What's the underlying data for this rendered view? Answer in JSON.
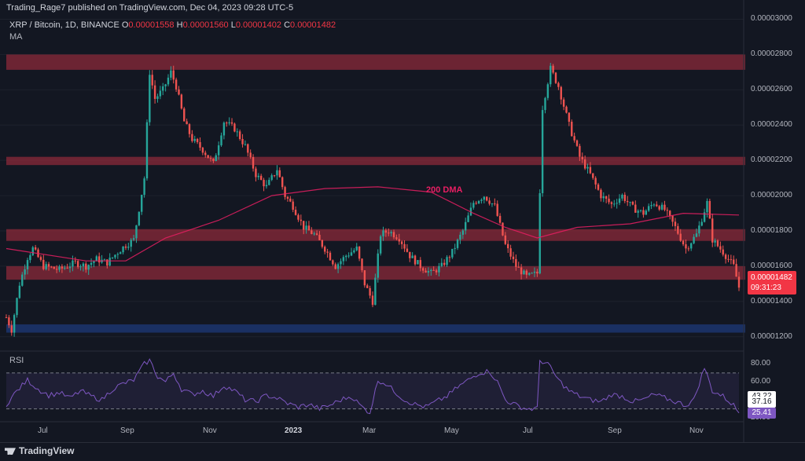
{
  "header": {
    "published": "Trading_Rage7 published on TradingView.com, Dec 04, 2023 09:28 UTC-5"
  },
  "symbol": {
    "name": "XRP / Bitcoin, 1D, BINANCE",
    "o_label": "O",
    "o_value": "0.00001558",
    "h_label": "H",
    "h_value": "0.00001560",
    "l_label": "L",
    "l_value": "0.00001402",
    "c_label": "C",
    "c_value": "0.00001482"
  },
  "indicators": {
    "ma": "MA",
    "rsi": "RSI",
    "dma_annotation": "200 DMA"
  },
  "footer": {
    "brand": "TradingView"
  },
  "price_tag": {
    "price": "0.00001482",
    "countdown": "09:31:23"
  },
  "colors": {
    "background": "#131722",
    "bull": "#26a69a",
    "bear": "#ef5350",
    "ma_line": "#e91e63",
    "rsi_line": "#7e57c2",
    "resistance_zone": "#8b2a3a",
    "support_zone": "#1e3a7a"
  },
  "chart_data": {
    "type": "candlestick",
    "title": "XRP / Bitcoin, 1D, BINANCE",
    "y_axis": {
      "min": 1.15e-05,
      "max": 3.02e-05,
      "ticks": [
        "0.00003000",
        "0.00002800",
        "0.00002600",
        "0.00002400",
        "0.00002200",
        "0.00002000",
        "0.00001800",
        "0.00001600",
        "0.00001400",
        "0.00001200"
      ]
    },
    "x_axis": {
      "ticks": [
        {
          "label": "Jul",
          "bold": false
        },
        {
          "label": "Sep",
          "bold": false
        },
        {
          "label": "Nov",
          "bold": false
        },
        {
          "label": "2023",
          "bold": true
        },
        {
          "label": "Mar",
          "bold": false
        },
        {
          "label": "May",
          "bold": false
        },
        {
          "label": "Jul",
          "bold": false
        },
        {
          "label": "Sep",
          "bold": false
        },
        {
          "label": "Nov",
          "bold": false
        }
      ]
    },
    "zones": [
      {
        "name": "resistance-2800",
        "low": 2.74e-05,
        "high": 2.8e-05,
        "kind": "resistance"
      },
      {
        "name": "resistance-2200",
        "low": 2.2e-05,
        "high": 2.22e-05,
        "kind": "resistance"
      },
      {
        "name": "resistance-1800",
        "low": 1.77e-05,
        "high": 1.81e-05,
        "kind": "resistance"
      },
      {
        "name": "resistance-1580",
        "low": 1.55e-05,
        "high": 1.6e-05,
        "kind": "resistance"
      },
      {
        "name": "support-1270",
        "low": 1.25e-05,
        "high": 1.27e-05,
        "kind": "support"
      }
    ],
    "price_path": [
      [
        0,
        1.31e-05
      ],
      [
        2,
        1.24e-05
      ],
      [
        5,
        1.5e-05
      ],
      [
        8,
        1.65e-05
      ],
      [
        10,
        1.7e-05
      ],
      [
        14,
        1.6e-05
      ],
      [
        20,
        1.58e-05
      ],
      [
        26,
        1.62e-05
      ],
      [
        30,
        1.6e-05
      ],
      [
        34,
        1.64e-05
      ],
      [
        38,
        1.62e-05
      ],
      [
        42,
        1.68e-05
      ],
      [
        45,
        1.72e-05
      ],
      [
        48,
        1.75e-05
      ],
      [
        52,
        2.1e-05
      ],
      [
        54,
        2.7e-05
      ],
      [
        56,
        2.55e-05
      ],
      [
        59,
        2.6e-05
      ],
      [
        62,
        2.7e-05
      ],
      [
        64,
        2.62e-05
      ],
      [
        67,
        2.42e-05
      ],
      [
        70,
        2.32e-05
      ],
      [
        74,
        2.26e-05
      ],
      [
        78,
        2.18e-05
      ],
      [
        82,
        2.42e-05
      ],
      [
        86,
        2.38e-05
      ],
      [
        90,
        2.28e-05
      ],
      [
        94,
        2.12e-05
      ],
      [
        98,
        2.05e-05
      ],
      [
        102,
        2.15e-05
      ],
      [
        105,
        2e-05
      ],
      [
        108,
        1.94e-05
      ],
      [
        112,
        1.82e-05
      ],
      [
        116,
        1.78e-05
      ],
      [
        120,
        1.7e-05
      ],
      [
        124,
        1.6e-05
      ],
      [
        128,
        1.66e-05
      ],
      [
        132,
        1.7e-05
      ],
      [
        135,
        1.5e-05
      ],
      [
        138,
        1.4e-05
      ],
      [
        141,
        1.78e-05
      ],
      [
        144,
        1.8e-05
      ],
      [
        148,
        1.76e-05
      ],
      [
        152,
        1.66e-05
      ],
      [
        156,
        1.6e-05
      ],
      [
        160,
        1.56e-05
      ],
      [
        164,
        1.6e-05
      ],
      [
        168,
        1.68e-05
      ],
      [
        172,
        1.8e-05
      ],
      [
        176,
        1.96e-05
      ],
      [
        180,
        2e-05
      ],
      [
        184,
        1.94e-05
      ],
      [
        188,
        1.72e-05
      ],
      [
        192,
        1.6e-05
      ],
      [
        196,
        1.54e-05
      ],
      [
        200,
        1.56e-05
      ],
      [
        202,
        2.5e-05
      ],
      [
        205,
        2.72e-05
      ],
      [
        208,
        2.62e-05
      ],
      [
        212,
        2.4e-05
      ],
      [
        216,
        2.22e-05
      ],
      [
        220,
        2.12e-05
      ],
      [
        224,
        2e-05
      ],
      [
        228,
        1.95e-05
      ],
      [
        232,
        2e-05
      ],
      [
        236,
        1.93e-05
      ],
      [
        240,
        1.9e-05
      ],
      [
        244,
        1.96e-05
      ],
      [
        248,
        1.92e-05
      ],
      [
        252,
        1.82e-05
      ],
      [
        256,
        1.7e-05
      ],
      [
        260,
        1.78e-05
      ],
      [
        264,
        1.96e-05
      ],
      [
        266,
        1.75e-05
      ],
      [
        270,
        1.68e-05
      ],
      [
        274,
        1.6e-05
      ],
      [
        276,
        1.48e-05
      ]
    ],
    "ma_path": [
      [
        0,
        1.7e-05
      ],
      [
        30,
        1.63e-05
      ],
      [
        45,
        1.63e-05
      ],
      [
        60,
        1.76e-05
      ],
      [
        80,
        1.86e-05
      ],
      [
        100,
        2e-05
      ],
      [
        120,
        2.04e-05
      ],
      [
        140,
        2.05e-05
      ],
      [
        160,
        2.02e-05
      ],
      [
        176,
        1.9e-05
      ],
      [
        188,
        1.82e-05
      ],
      [
        200,
        1.76e-05
      ],
      [
        215,
        1.82e-05
      ],
      [
        235,
        1.84e-05
      ],
      [
        255,
        1.9e-05
      ],
      [
        276,
        1.89e-05
      ]
    ],
    "rsi": {
      "min": 20,
      "max": 90,
      "ticks": [
        "80.00",
        "60.00",
        "20.00"
      ],
      "levels": [
        70,
        30
      ],
      "tags": [
        {
          "value": "43.22",
          "num": 43.22,
          "kind": "white"
        },
        {
          "value": "37.16",
          "num": 37.16,
          "kind": "white"
        },
        {
          "value": "25.41",
          "num": 25.41,
          "kind": "purple"
        }
      ],
      "path": [
        [
          0,
          35
        ],
        [
          4,
          50
        ],
        [
          8,
          62
        ],
        [
          12,
          52
        ],
        [
          16,
          45
        ],
        [
          20,
          48
        ],
        [
          24,
          42
        ],
        [
          28,
          50
        ],
        [
          32,
          44
        ],
        [
          36,
          40
        ],
        [
          40,
          52
        ],
        [
          44,
          58
        ],
        [
          48,
          62
        ],
        [
          52,
          80
        ],
        [
          54,
          84
        ],
        [
          57,
          66
        ],
        [
          60,
          60
        ],
        [
          63,
          70
        ],
        [
          66,
          52
        ],
        [
          70,
          46
        ],
        [
          74,
          50
        ],
        [
          78,
          44
        ],
        [
          82,
          56
        ],
        [
          86,
          50
        ],
        [
          90,
          40
        ],
        [
          94,
          38
        ],
        [
          98,
          45
        ],
        [
          102,
          42
        ],
        [
          106,
          36
        ],
        [
          110,
          32
        ],
        [
          114,
          35
        ],
        [
          118,
          30
        ],
        [
          122,
          34
        ],
        [
          126,
          40
        ],
        [
          130,
          44
        ],
        [
          134,
          32
        ],
        [
          137,
          26
        ],
        [
          140,
          62
        ],
        [
          143,
          58
        ],
        [
          146,
          50
        ],
        [
          150,
          40
        ],
        [
          154,
          35
        ],
        [
          158,
          32
        ],
        [
          162,
          38
        ],
        [
          166,
          44
        ],
        [
          170,
          54
        ],
        [
          174,
          62
        ],
        [
          178,
          70
        ],
        [
          182,
          72
        ],
        [
          185,
          60
        ],
        [
          188,
          40
        ],
        [
          192,
          34
        ],
        [
          196,
          30
        ],
        [
          200,
          30
        ],
        [
          201,
          84
        ],
        [
          204,
          80
        ],
        [
          208,
          62
        ],
        [
          212,
          50
        ],
        [
          216,
          44
        ],
        [
          220,
          40
        ],
        [
          224,
          38
        ],
        [
          228,
          46
        ],
        [
          232,
          44
        ],
        [
          236,
          38
        ],
        [
          240,
          40
        ],
        [
          244,
          46
        ],
        [
          248,
          42
        ],
        [
          252,
          38
        ],
        [
          256,
          34
        ],
        [
          259,
          40
        ],
        [
          263,
          76
        ],
        [
          266,
          50
        ],
        [
          270,
          44
        ],
        [
          274,
          34
        ],
        [
          276,
          25.41
        ]
      ]
    }
  }
}
